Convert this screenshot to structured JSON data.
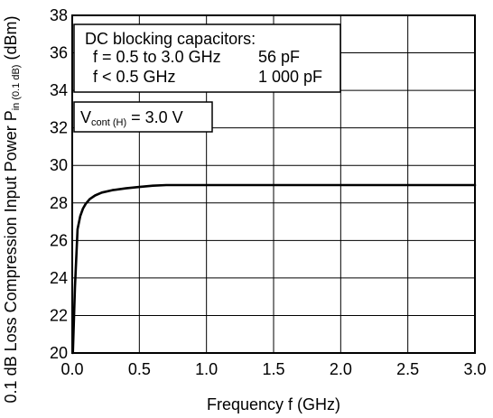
{
  "chart_data": {
    "type": "line",
    "xlabel": "Frequency  f (GHz)",
    "ylabel": {
      "prefix": "0.1 dB Loss Compression Input Power  P",
      "subscript": "in (0.1 dB)",
      "suffix": " (dBm)"
    },
    "xlim": [
      0.0,
      3.0
    ],
    "ylim": [
      20,
      38
    ],
    "x_ticks": [
      {
        "value": 0.0,
        "label": "0.0"
      },
      {
        "value": 0.5,
        "label": "0.5"
      },
      {
        "value": 1.0,
        "label": "1.0"
      },
      {
        "value": 1.5,
        "label": "1.5"
      },
      {
        "value": 2.0,
        "label": "2.0"
      },
      {
        "value": 2.5,
        "label": "2.5"
      },
      {
        "value": 3.0,
        "label": "3.0"
      }
    ],
    "y_ticks": [
      {
        "value": 20,
        "label": "20"
      },
      {
        "value": 22,
        "label": "22"
      },
      {
        "value": 24,
        "label": "24"
      },
      {
        "value": 26,
        "label": "26"
      },
      {
        "value": 28,
        "label": "28"
      },
      {
        "value": 30,
        "label": "30"
      },
      {
        "value": 32,
        "label": "32"
      },
      {
        "value": 34,
        "label": "34"
      },
      {
        "value": 36,
        "label": "36"
      },
      {
        "value": 38,
        "label": "38"
      }
    ],
    "grid": true,
    "series": [
      {
        "x": [
          0.005,
          0.02,
          0.04,
          0.06,
          0.08,
          0.1,
          0.13,
          0.17,
          0.22,
          0.3,
          0.4,
          0.5,
          0.6,
          0.7,
          0.8,
          1.0,
          1.5,
          2.0,
          2.5,
          3.0
        ],
        "y": [
          20.0,
          23.5,
          26.6,
          27.3,
          27.7,
          27.95,
          28.2,
          28.4,
          28.55,
          28.68,
          28.78,
          28.85,
          28.92,
          28.95,
          28.95,
          28.95,
          28.95,
          28.95,
          28.95,
          28.95
        ]
      }
    ],
    "annotation_box": {
      "lines": [
        {
          "left": "DC blocking capacitors:",
          "right": ""
        },
        {
          "left": "f = 0.5 to 3.0 GHz",
          "right": "56 pF"
        },
        {
          "left": "f < 0.5 GHz",
          "right": "1 000 pF"
        }
      ]
    },
    "condition": {
      "prefix": "V",
      "subscript": "cont (H)",
      "suffix": " = 3.0 V"
    }
  }
}
